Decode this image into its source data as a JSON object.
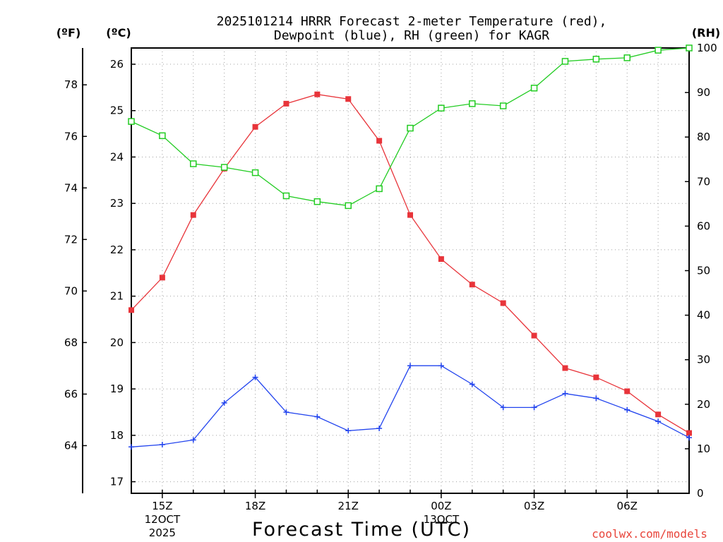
{
  "chart_data": {
    "type": "line",
    "title_line1": "2025101214 HRRR Forecast 2-meter Temperature (red),",
    "title_line2": "Dewpoint (blue), RH (green) for KAGR",
    "xlabel": "Forecast Time (UTC)",
    "credit": "coolwx.com/models",
    "units": {
      "fahrenheit": "(ºF)",
      "celsius": "(ºC)",
      "rh": "(RH)"
    },
    "x_hours": [
      14,
      15,
      16,
      17,
      18,
      19,
      20,
      21,
      22,
      23,
      24,
      25,
      26,
      27,
      28,
      29,
      30,
      31,
      32
    ],
    "x_ticks": [
      {
        "hour": 15,
        "label": "15Z",
        "date": "12OCT",
        "year": "2025"
      },
      {
        "hour": 18,
        "label": "18Z",
        "date": "",
        "year": ""
      },
      {
        "hour": 21,
        "label": "21Z",
        "date": "",
        "year": ""
      },
      {
        "hour": 24,
        "label": "00Z",
        "date": "13OCT",
        "year": ""
      },
      {
        "hour": 27,
        "label": "03Z",
        "date": "",
        "year": ""
      },
      {
        "hour": 30,
        "label": "06Z",
        "date": "",
        "year": ""
      }
    ],
    "xlim": [
      14,
      32
    ],
    "celsius_ylim": [
      16.75,
      26.35
    ],
    "celsius_ticks": [
      17,
      18,
      19,
      20,
      21,
      22,
      23,
      24,
      25,
      26
    ],
    "fahrenheit_ticks": [
      64,
      66,
      68,
      70,
      72,
      74,
      76,
      78
    ],
    "rh_ylim": [
      0,
      100
    ],
    "rh_ticks": [
      0,
      10,
      20,
      30,
      40,
      50,
      60,
      70,
      80,
      90,
      100
    ],
    "series": [
      {
        "name": "Temperature",
        "axis": "celsius",
        "color": "#e8343a",
        "marker": "filled-square",
        "values": [
          20.7,
          21.4,
          22.75,
          23.75,
          24.65,
          25.15,
          25.35,
          25.25,
          24.35,
          22.75,
          21.8,
          21.25,
          20.85,
          20.15,
          19.45,
          19.25,
          18.95,
          18.45,
          18.05
        ]
      },
      {
        "name": "Dewpoint",
        "axis": "celsius",
        "color": "#2244ee",
        "marker": "plus",
        "values": [
          17.75,
          17.8,
          17.9,
          18.7,
          19.25,
          18.5,
          18.4,
          18.1,
          18.15,
          19.5,
          19.5,
          19.1,
          18.6,
          18.6,
          18.9,
          18.8,
          18.55,
          18.3,
          17.95
        ]
      },
      {
        "name": "RH",
        "axis": "rh",
        "color": "#22cc22",
        "marker": "open-square",
        "values": [
          83.5,
          80.3,
          74.0,
          73.2,
          72.0,
          66.8,
          65.5,
          64.6,
          68.4,
          82.0,
          86.5,
          87.5,
          87.0,
          91.0,
          97.0,
          97.5,
          97.8,
          99.5,
          100.0
        ]
      }
    ]
  }
}
